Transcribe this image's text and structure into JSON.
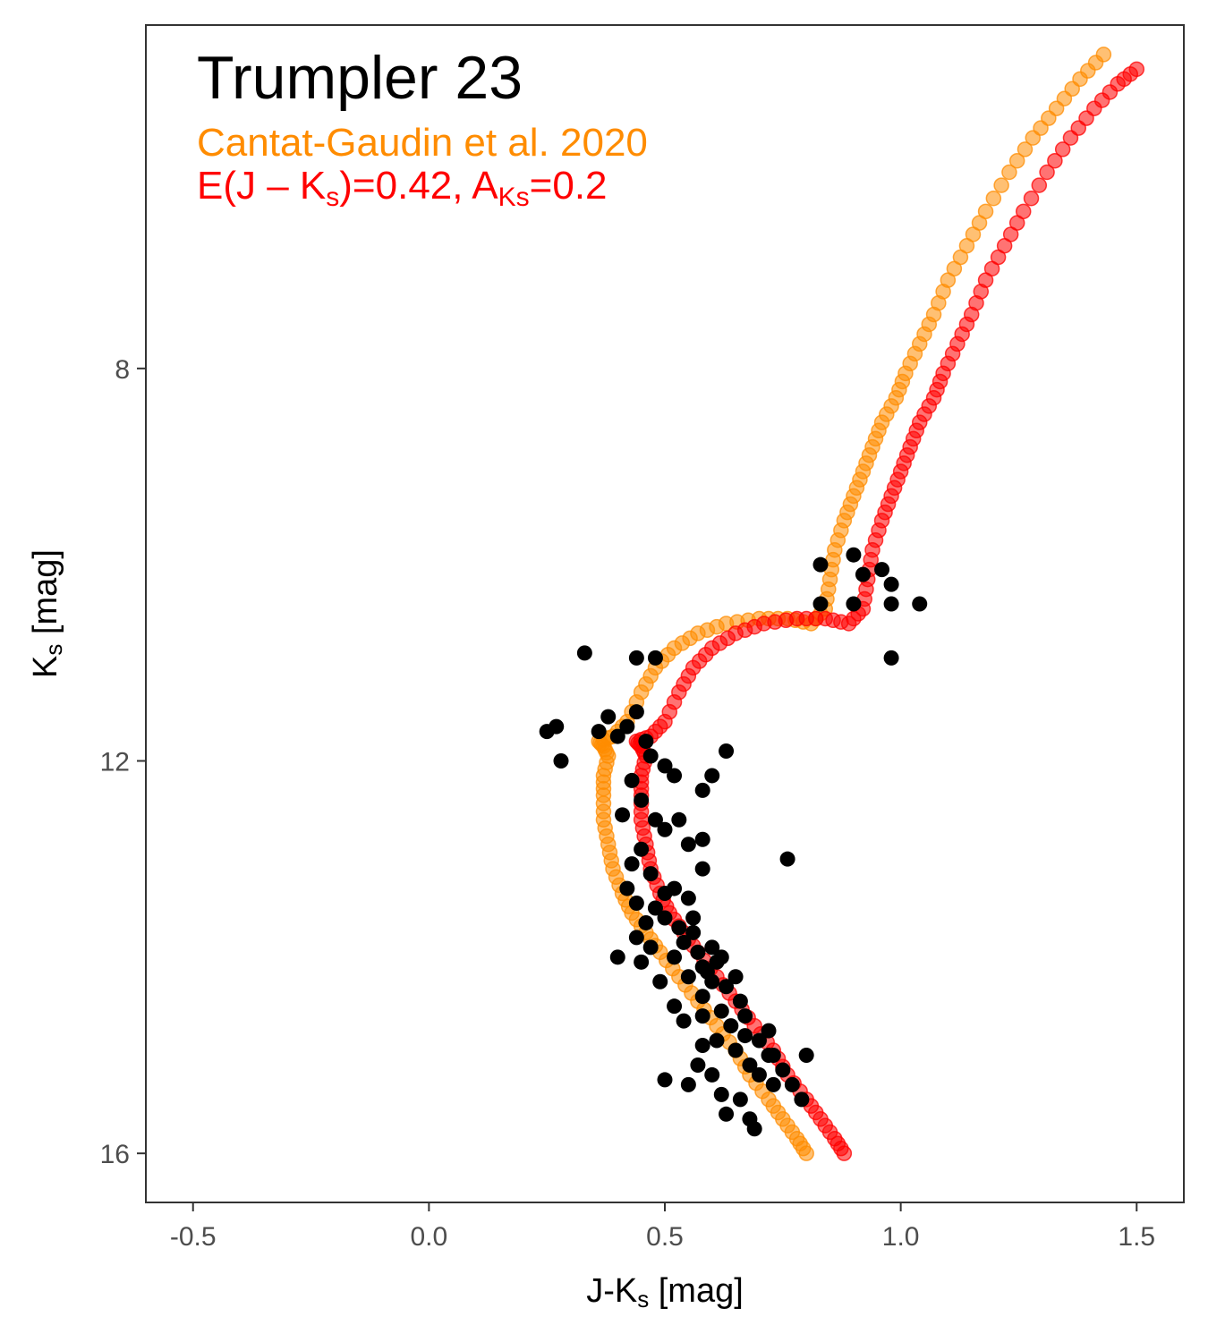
{
  "chart_data": {
    "type": "scatter",
    "xlabel": "J-Ks [mag]",
    "xlabel_main": "J-K",
    "xlabel_sub": "s",
    "xlabel_tail": " [mag]",
    "ylabel_main": "K",
    "ylabel_sub": "s",
    "ylabel_tail": " [mag]",
    "xlim": [
      -0.6,
      1.6
    ],
    "ylim": [
      16.5,
      4.5
    ],
    "y_inverted": true,
    "x_ticks": [
      -0.5,
      0.0,
      0.5,
      1.0,
      1.5
    ],
    "x_tick_labels": [
      "-0.5",
      "0.0",
      "0.5",
      "1.0",
      "1.5"
    ],
    "y_ticks": [
      8,
      12,
      16
    ],
    "y_tick_labels": [
      "8",
      "12",
      "16"
    ],
    "grid": false,
    "annotations": {
      "title": "Trumpler 23",
      "line1": "Cantat-Gaudin et al. 2020",
      "line2_a": "E(J – K",
      "line2_sub1": "s",
      "line2_b": ")=0.42, A",
      "line2_sub2": "Ks",
      "line2_c": "=0.2"
    },
    "colors": {
      "stars": "#000000",
      "isochrone_orange": "#ff8c00",
      "isochrone_red": "#ff0000",
      "annotation_orange": "#ff8c00",
      "annotation_red": "#ff0000"
    },
    "series": [
      {
        "kind": "stars",
        "points": [
          [
            0.33,
            10.9
          ],
          [
            0.44,
            10.95
          ],
          [
            0.48,
            10.95
          ],
          [
            0.25,
            11.7
          ],
          [
            0.27,
            11.65
          ],
          [
            0.28,
            12.0
          ],
          [
            0.36,
            11.7
          ],
          [
            0.38,
            11.55
          ],
          [
            0.4,
            11.75
          ],
          [
            0.42,
            11.65
          ],
          [
            0.44,
            11.5
          ],
          [
            0.46,
            11.8
          ],
          [
            0.47,
            11.95
          ],
          [
            0.5,
            12.05
          ],
          [
            0.52,
            12.15
          ],
          [
            0.63,
            11.9
          ],
          [
            0.6,
            12.15
          ],
          [
            0.58,
            12.3
          ],
          [
            0.43,
            12.2
          ],
          [
            0.45,
            12.4
          ],
          [
            0.48,
            12.6
          ],
          [
            0.41,
            12.55
          ],
          [
            0.45,
            12.9
          ],
          [
            0.5,
            12.7
          ],
          [
            0.53,
            12.6
          ],
          [
            0.55,
            12.85
          ],
          [
            0.58,
            12.8
          ],
          [
            0.58,
            13.1
          ],
          [
            0.43,
            13.05
          ],
          [
            0.47,
            13.15
          ],
          [
            0.52,
            13.3
          ],
          [
            0.55,
            13.4
          ],
          [
            0.42,
            13.3
          ],
          [
            0.44,
            13.45
          ],
          [
            0.48,
            13.5
          ],
          [
            0.5,
            13.6
          ],
          [
            0.53,
            13.7
          ],
          [
            0.56,
            13.6
          ],
          [
            0.54,
            13.85
          ],
          [
            0.57,
            13.95
          ],
          [
            0.6,
            13.9
          ],
          [
            0.62,
            14.0
          ],
          [
            0.58,
            14.1
          ],
          [
            0.6,
            14.25
          ],
          [
            0.63,
            14.3
          ],
          [
            0.65,
            14.2
          ],
          [
            0.61,
            14.05
          ],
          [
            0.59,
            14.15
          ],
          [
            0.56,
            13.75
          ],
          [
            0.5,
            13.35
          ],
          [
            0.46,
            13.65
          ],
          [
            0.44,
            13.8
          ],
          [
            0.47,
            13.9
          ],
          [
            0.52,
            14.0
          ],
          [
            0.55,
            14.2
          ],
          [
            0.58,
            14.4
          ],
          [
            0.62,
            14.55
          ],
          [
            0.66,
            14.45
          ],
          [
            0.64,
            14.7
          ],
          [
            0.67,
            14.8
          ],
          [
            0.7,
            14.85
          ],
          [
            0.72,
            14.75
          ],
          [
            0.68,
            15.1
          ],
          [
            0.7,
            15.2
          ],
          [
            0.73,
            15.3
          ],
          [
            0.75,
            15.15
          ],
          [
            0.77,
            15.3
          ],
          [
            0.79,
            15.45
          ],
          [
            0.72,
            15.0
          ],
          [
            0.65,
            14.95
          ],
          [
            0.61,
            14.85
          ],
          [
            0.58,
            14.9
          ],
          [
            0.57,
            15.1
          ],
          [
            0.55,
            15.3
          ],
          [
            0.6,
            15.2
          ],
          [
            0.62,
            15.4
          ],
          [
            0.66,
            15.45
          ],
          [
            0.68,
            15.65
          ],
          [
            0.63,
            15.6
          ],
          [
            0.5,
            15.25
          ],
          [
            0.73,
            15.0
          ],
          [
            0.76,
            13.0
          ],
          [
            0.8,
            15.0
          ],
          [
            0.69,
            15.75
          ],
          [
            0.4,
            14.0
          ],
          [
            0.45,
            14.05
          ],
          [
            0.49,
            14.25
          ],
          [
            0.52,
            14.5
          ],
          [
            0.54,
            14.65
          ],
          [
            0.58,
            14.6
          ],
          [
            0.67,
            14.6
          ],
          [
            0.83,
            10.0
          ],
          [
            0.83,
            10.4
          ],
          [
            0.9,
            9.9
          ],
          [
            0.92,
            10.1
          ],
          [
            0.9,
            10.4
          ],
          [
            0.96,
            10.05
          ],
          [
            0.98,
            10.2
          ],
          [
            0.98,
            10.4
          ],
          [
            1.04,
            10.4
          ],
          [
            0.98,
            10.95
          ]
        ]
      },
      {
        "kind": "isochrone",
        "name": "Cantat-Gaudin et al. 2020",
        "points": [
          [
            0.8,
            16.0
          ],
          [
            0.78,
            15.85
          ],
          [
            0.75,
            15.65
          ],
          [
            0.72,
            15.45
          ],
          [
            0.68,
            15.2
          ],
          [
            0.65,
            14.95
          ],
          [
            0.61,
            14.7
          ],
          [
            0.57,
            14.45
          ],
          [
            0.53,
            14.2
          ],
          [
            0.49,
            13.95
          ],
          [
            0.46,
            13.75
          ],
          [
            0.43,
            13.55
          ],
          [
            0.41,
            13.35
          ],
          [
            0.39,
            13.1
          ],
          [
            0.38,
            12.85
          ],
          [
            0.37,
            12.6
          ],
          [
            0.37,
            12.35
          ],
          [
            0.37,
            12.15
          ],
          [
            0.38,
            11.95
          ],
          [
            0.37,
            11.85
          ],
          [
            0.36,
            11.8
          ],
          [
            0.39,
            11.75
          ],
          [
            0.42,
            11.6
          ],
          [
            0.45,
            11.3
          ],
          [
            0.48,
            11.05
          ],
          [
            0.52,
            10.85
          ],
          [
            0.57,
            10.7
          ],
          [
            0.63,
            10.6
          ],
          [
            0.7,
            10.55
          ],
          [
            0.76,
            10.55
          ],
          [
            0.81,
            10.6
          ],
          [
            0.84,
            10.45
          ],
          [
            0.85,
            10.15
          ],
          [
            0.86,
            9.85
          ],
          [
            0.88,
            9.55
          ],
          [
            0.9,
            9.3
          ],
          [
            0.92,
            9.05
          ],
          [
            0.94,
            8.8
          ],
          [
            0.96,
            8.55
          ],
          [
            0.99,
            8.3
          ],
          [
            1.01,
            8.05
          ],
          [
            1.04,
            7.75
          ],
          [
            1.07,
            7.45
          ],
          [
            1.1,
            7.1
          ],
          [
            1.14,
            6.75
          ],
          [
            1.18,
            6.4
          ],
          [
            1.23,
            6.0
          ],
          [
            1.28,
            5.65
          ],
          [
            1.33,
            5.35
          ],
          [
            1.38,
            5.05
          ],
          [
            1.43,
            4.8
          ]
        ]
      },
      {
        "kind": "isochrone",
        "name": "E(J – Ks)=0.42, AKs=0.2",
        "points": [
          [
            0.88,
            16.0
          ],
          [
            0.86,
            15.85
          ],
          [
            0.83,
            15.65
          ],
          [
            0.8,
            15.45
          ],
          [
            0.76,
            15.2
          ],
          [
            0.73,
            14.95
          ],
          [
            0.69,
            14.7
          ],
          [
            0.65,
            14.45
          ],
          [
            0.61,
            14.2
          ],
          [
            0.57,
            13.95
          ],
          [
            0.54,
            13.75
          ],
          [
            0.51,
            13.55
          ],
          [
            0.49,
            13.35
          ],
          [
            0.47,
            13.1
          ],
          [
            0.46,
            12.85
          ],
          [
            0.45,
            12.6
          ],
          [
            0.45,
            12.35
          ],
          [
            0.45,
            12.15
          ],
          [
            0.46,
            11.95
          ],
          [
            0.45,
            11.85
          ],
          [
            0.44,
            11.8
          ],
          [
            0.47,
            11.75
          ],
          [
            0.5,
            11.6
          ],
          [
            0.53,
            11.3
          ],
          [
            0.56,
            11.05
          ],
          [
            0.6,
            10.85
          ],
          [
            0.65,
            10.7
          ],
          [
            0.71,
            10.6
          ],
          [
            0.78,
            10.55
          ],
          [
            0.84,
            10.55
          ],
          [
            0.89,
            10.6
          ],
          [
            0.92,
            10.45
          ],
          [
            0.93,
            10.15
          ],
          [
            0.94,
            9.85
          ],
          [
            0.96,
            9.55
          ],
          [
            0.98,
            9.3
          ],
          [
            1.0,
            9.05
          ],
          [
            1.02,
            8.8
          ],
          [
            1.04,
            8.55
          ],
          [
            1.07,
            8.3
          ],
          [
            1.09,
            8.05
          ],
          [
            1.12,
            7.75
          ],
          [
            1.15,
            7.45
          ],
          [
            1.18,
            7.1
          ],
          [
            1.22,
            6.75
          ],
          [
            1.26,
            6.4
          ],
          [
            1.31,
            6.0
          ],
          [
            1.36,
            5.65
          ],
          [
            1.41,
            5.35
          ],
          [
            1.46,
            5.1
          ],
          [
            1.5,
            4.95
          ]
        ]
      }
    ]
  }
}
